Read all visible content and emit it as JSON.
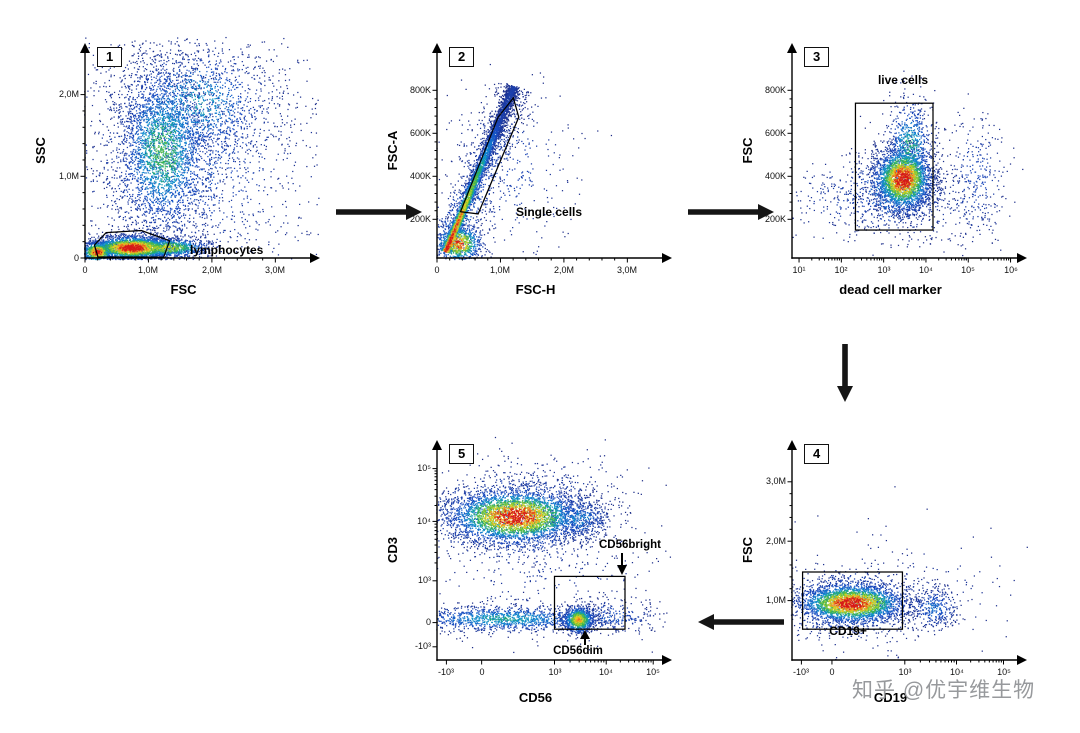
{
  "watermark": {
    "text": "知乎 @优宇维生物",
    "color": "#97999c"
  },
  "flow_sequence": [
    "1",
    "2",
    "3",
    "4",
    "5"
  ],
  "arrows": [
    {
      "from_panel": "1",
      "to_panel": "2",
      "direction": "right"
    },
    {
      "from_panel": "2",
      "to_panel": "3",
      "direction": "right"
    },
    {
      "from_panel": "3",
      "to_panel": "4",
      "direction": "down"
    },
    {
      "from_panel": "4",
      "to_panel": "5",
      "direction": "left"
    }
  ],
  "chart_data": [
    {
      "type": "scatter",
      "panel_number": "1",
      "xlabel": "FSC",
      "ylabel": "SSC",
      "x_axis": {
        "scale": "linear",
        "ticks": [
          {
            "label": "0",
            "pos": 0.0
          },
          {
            "label": "1,0M",
            "pos": 0.27
          },
          {
            "label": "2,0M",
            "pos": 0.54
          },
          {
            "label": "3,0M",
            "pos": 0.81
          }
        ]
      },
      "y_axis": {
        "scale": "linear",
        "ticks": [
          {
            "label": "0",
            "pos": 0.0
          },
          {
            "label": "1,0M",
            "pos": 0.38
          },
          {
            "label": "2,0M",
            "pos": 0.76
          }
        ]
      },
      "clusters": [
        {
          "type": "gauss",
          "cx": 0.33,
          "cy": 0.5,
          "sx": 0.1,
          "sy": 0.2,
          "n": 2600,
          "i": 0.55
        },
        {
          "type": "gauss",
          "cx": 0.47,
          "cy": 0.72,
          "sx": 0.17,
          "sy": 0.14,
          "n": 1200,
          "i": 0.42
        },
        {
          "type": "gauss",
          "cx": 0.42,
          "cy": 0.45,
          "sx": 0.26,
          "sy": 0.28,
          "n": 1400,
          "i": 0.25
        },
        {
          "type": "gauss",
          "cx": 0.2,
          "cy": 0.05,
          "sx": 0.095,
          "sy": 0.028,
          "n": 2300,
          "i": 1.0
        },
        {
          "type": "gauss",
          "cx": 0.34,
          "cy": 0.05,
          "sx": 0.1,
          "sy": 0.024,
          "n": 900,
          "i": 0.7
        },
        {
          "type": "gauss",
          "cx": 0.05,
          "cy": 0.03,
          "sx": 0.035,
          "sy": 0.025,
          "n": 700,
          "i": 0.95
        },
        {
          "type": "gauss",
          "cx": 0.5,
          "cy": 0.5,
          "sx": 0.42,
          "sy": 0.4,
          "n": 450,
          "i": 0.12
        }
      ],
      "gates": [
        {
          "shape": "polygon",
          "label": "lymphocytes",
          "points": [
            [
              0.055,
              0.005
            ],
            [
              0.04,
              0.06
            ],
            [
              0.09,
              0.118
            ],
            [
              0.24,
              0.128
            ],
            [
              0.36,
              0.08
            ],
            [
              0.335,
              0.004
            ]
          ]
        }
      ]
    },
    {
      "type": "scatter",
      "panel_number": "2",
      "xlabel": "FSC-H",
      "ylabel": "FSC-A",
      "x_axis": {
        "scale": "linear",
        "ticks": [
          {
            "label": "0",
            "pos": 0.0
          },
          {
            "label": "1,0M",
            "pos": 0.27
          },
          {
            "label": "2,0M",
            "pos": 0.54
          },
          {
            "label": "3,0M",
            "pos": 0.81
          }
        ]
      },
      "y_axis": {
        "scale": "linear",
        "ticks": [
          {
            "label": "200K",
            "pos": 0.18
          },
          {
            "label": "400K",
            "pos": 0.38
          },
          {
            "label": "600K",
            "pos": 0.58
          },
          {
            "label": "800K",
            "pos": 0.78
          }
        ]
      },
      "clusters": [
        {
          "type": "streak",
          "x1": 0.035,
          "y1": 0.03,
          "x2": 0.325,
          "y2": 0.8,
          "lat": 0.013,
          "n": 3200,
          "i": 1.0,
          "fade": 1.15
        },
        {
          "type": "streak",
          "x1": 0.04,
          "y1": 0.03,
          "x2": 0.34,
          "y2": 0.8,
          "lat": 0.05,
          "n": 900,
          "i": 0.4,
          "fade": 1.1
        },
        {
          "type": "gauss",
          "cx": 0.3,
          "cy": 0.42,
          "sx": 0.14,
          "sy": 0.2,
          "n": 350,
          "i": 0.18
        },
        {
          "type": "gauss",
          "cx": 0.09,
          "cy": 0.07,
          "sx": 0.05,
          "sy": 0.045,
          "n": 700,
          "i": 0.9
        }
      ],
      "gates": [
        {
          "shape": "polygon",
          "label": "Single cells",
          "points": [
            [
              0.1,
              0.215
            ],
            [
              0.26,
              0.655
            ],
            [
              0.325,
              0.745
            ],
            [
              0.348,
              0.655
            ],
            [
              0.175,
              0.205
            ]
          ]
        }
      ]
    },
    {
      "type": "scatter",
      "panel_number": "3",
      "xlabel": "dead cell marker",
      "ylabel": "FSC",
      "x_axis": {
        "scale": "log",
        "ticks": [
          {
            "label": "10¹",
            "pos": 0.03
          },
          {
            "label": "10²",
            "pos": 0.21
          },
          {
            "label": "10³",
            "pos": 0.39
          },
          {
            "label": "10⁴",
            "pos": 0.57
          },
          {
            "label": "10⁵",
            "pos": 0.75
          },
          {
            "label": "10⁶",
            "pos": 0.93
          }
        ]
      },
      "y_axis": {
        "scale": "linear",
        "ticks": [
          {
            "label": "200K",
            "pos": 0.18
          },
          {
            "label": "400K",
            "pos": 0.38
          },
          {
            "label": "600K",
            "pos": 0.58
          },
          {
            "label": "800K",
            "pos": 0.78
          }
        ]
      },
      "clusters": [
        {
          "type": "gauss",
          "cx": 0.47,
          "cy": 0.37,
          "sx": 0.062,
          "sy": 0.075,
          "n": 2600,
          "i": 1.0
        },
        {
          "type": "gauss",
          "cx": 0.5,
          "cy": 0.52,
          "sx": 0.05,
          "sy": 0.11,
          "n": 700,
          "i": 0.5
        },
        {
          "type": "gauss",
          "cx": 0.43,
          "cy": 0.31,
          "sx": 0.12,
          "sy": 0.1,
          "n": 550,
          "i": 0.35
        },
        {
          "type": "gauss",
          "cx": 0.24,
          "cy": 0.28,
          "sx": 0.14,
          "sy": 0.1,
          "n": 220,
          "i": 0.15
        },
        {
          "type": "gauss",
          "cx": 0.78,
          "cy": 0.37,
          "sx": 0.07,
          "sy": 0.15,
          "n": 280,
          "i": 0.2
        },
        {
          "type": "gauss",
          "cx": 0.6,
          "cy": 0.23,
          "sx": 0.17,
          "sy": 0.08,
          "n": 160,
          "i": 0.12
        }
      ],
      "gates": [
        {
          "shape": "rect",
          "label": "live cells",
          "rect": [
            0.27,
            0.13,
            0.33,
            0.59
          ]
        }
      ]
    },
    {
      "type": "scatter",
      "panel_number": "4",
      "xlabel": "CD19",
      "ylabel": "FSC",
      "x_axis": {
        "scale": "biexp",
        "ticks": [
          {
            "label": "-10³",
            "pos": 0.04
          },
          {
            "label": "0",
            "pos": 0.17
          },
          {
            "label": "10³",
            "pos": 0.48
          },
          {
            "label": "10⁴",
            "pos": 0.7
          },
          {
            "label": "10⁵",
            "pos": 0.9
          }
        ]
      },
      "y_axis": {
        "scale": "linear",
        "ticks": [
          {
            "label": "1,0M",
            "pos": 0.27
          },
          {
            "label": "2,0M",
            "pos": 0.54
          },
          {
            "label": "3,0M",
            "pos": 0.81
          }
        ]
      },
      "clusters": [
        {
          "type": "gauss",
          "cx": 0.25,
          "cy": 0.26,
          "sx": 0.115,
          "sy": 0.045,
          "n": 2700,
          "i": 1.0
        },
        {
          "type": "gauss",
          "cx": 0.25,
          "cy": 0.26,
          "sx": 0.16,
          "sy": 0.08,
          "n": 700,
          "i": 0.4
        },
        {
          "type": "gauss",
          "cx": 0.6,
          "cy": 0.24,
          "sx": 0.055,
          "sy": 0.05,
          "n": 330,
          "i": 0.3
        },
        {
          "type": "gauss",
          "cx": 0.45,
          "cy": 0.3,
          "sx": 0.3,
          "sy": 0.15,
          "n": 170,
          "i": 0.1
        }
      ],
      "gates": [
        {
          "shape": "rect",
          "label": "CD19+",
          "rect": [
            0.045,
            0.14,
            0.425,
            0.26
          ]
        }
      ]
    },
    {
      "type": "scatter",
      "panel_number": "5",
      "xlabel": "CD56",
      "ylabel": "CD3",
      "x_axis": {
        "scale": "biexp",
        "ticks": [
          {
            "label": "-10³",
            "pos": 0.04
          },
          {
            "label": "0",
            "pos": 0.19
          },
          {
            "label": "10³",
            "pos": 0.5
          },
          {
            "label": "10⁴",
            "pos": 0.72
          },
          {
            "label": "10⁵",
            "pos": 0.92
          }
        ]
      },
      "y_axis": {
        "scale": "biexp",
        "ticks": [
          {
            "label": "-10³",
            "pos": 0.06
          },
          {
            "label": "0",
            "pos": 0.17
          },
          {
            "label": "10³",
            "pos": 0.36
          },
          {
            "label": "10⁴",
            "pos": 0.63
          },
          {
            "label": "10⁵",
            "pos": 0.87
          }
        ]
      },
      "clusters": [
        {
          "type": "gauss",
          "cx": 0.33,
          "cy": 0.655,
          "sx": 0.145,
          "sy": 0.062,
          "n": 3300,
          "i": 1.0
        },
        {
          "type": "gauss",
          "cx": 0.34,
          "cy": 0.655,
          "sx": 0.21,
          "sy": 0.105,
          "n": 900,
          "i": 0.4
        },
        {
          "type": "gauss",
          "cx": 0.6,
          "cy": 0.645,
          "sx": 0.07,
          "sy": 0.05,
          "n": 420,
          "i": 0.35
        },
        {
          "type": "gauss",
          "cx": 0.28,
          "cy": 0.19,
          "sx": 0.22,
          "sy": 0.03,
          "n": 1300,
          "i": 0.45
        },
        {
          "type": "gauss",
          "cx": 0.6,
          "cy": 0.185,
          "sx": 0.034,
          "sy": 0.032,
          "n": 850,
          "i": 0.78
        },
        {
          "type": "gauss",
          "cx": 0.45,
          "cy": 0.42,
          "sx": 0.25,
          "sy": 0.16,
          "n": 280,
          "i": 0.1
        },
        {
          "type": "gauss",
          "cx": 0.74,
          "cy": 0.2,
          "sx": 0.1,
          "sy": 0.04,
          "n": 260,
          "i": 0.25
        },
        {
          "type": "gauss",
          "cx": 0.5,
          "cy": 0.82,
          "sx": 0.18,
          "sy": 0.07,
          "n": 130,
          "i": 0.1
        }
      ],
      "gates": [
        {
          "shape": "rect",
          "rect": [
            0.5,
            0.14,
            0.3,
            0.24
          ]
        }
      ],
      "annotations": [
        {
          "label": "CD56bright",
          "arrow": "down"
        },
        {
          "label": "CD56dim",
          "arrow": "up"
        }
      ]
    }
  ]
}
